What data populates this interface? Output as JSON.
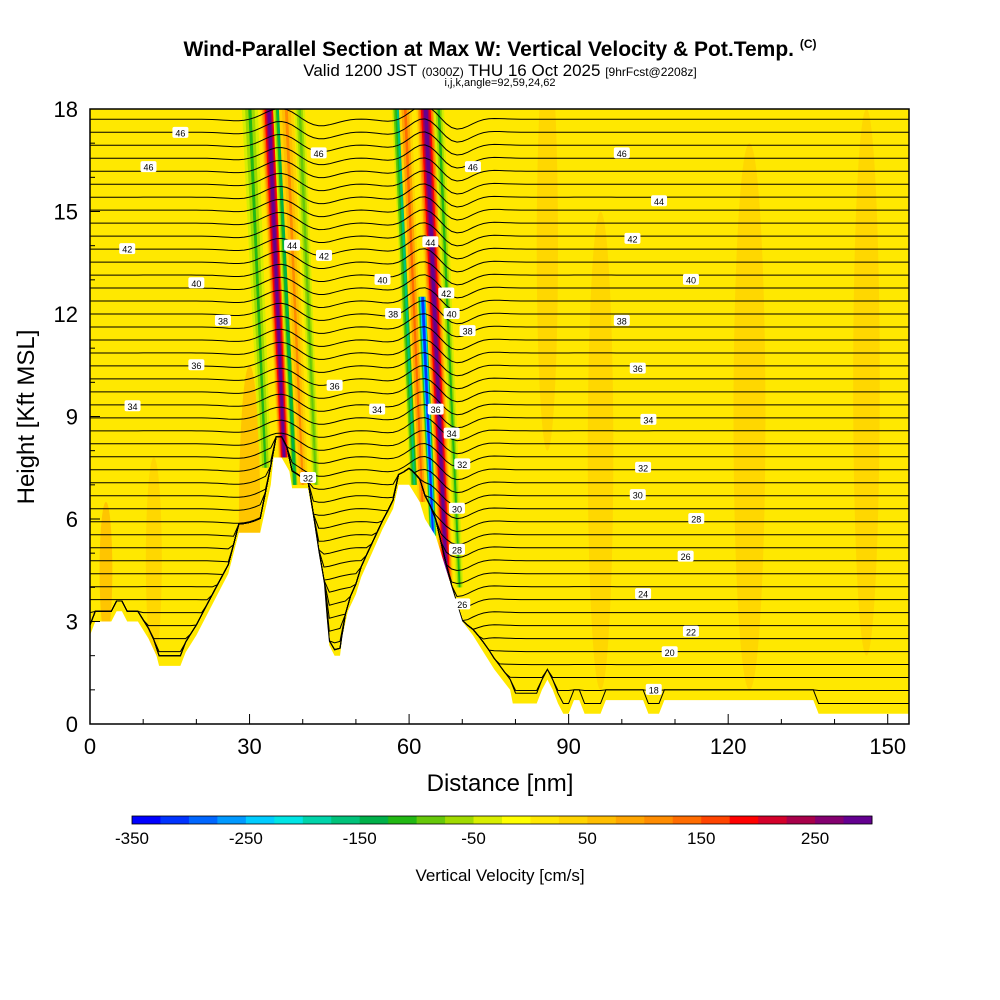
{
  "header": {
    "title": "Wind-Parallel Section at Max W: Vertical Velocity & Pot.Temp.",
    "copyright": "(C)",
    "valid_prefix": "Valid 1200 JST",
    "valid_utc": "(0300Z)",
    "valid_date": "THU 16 Oct 2025",
    "forecast": "[9hrFcst@2208z]",
    "indices": "i,j,k,angle=92,59,24,62"
  },
  "colors": {
    "terrain": "#ffffff",
    "contour_line": "#000000",
    "background_fill": "#ffdd00"
  },
  "chart_data": {
    "type": "cross-section",
    "xlabel": "Distance [nm]",
    "ylabel": "Height [Kft MSL]",
    "xlim": [
      0,
      154
    ],
    "ylim": [
      0,
      18
    ],
    "x_ticks": [
      0,
      30,
      60,
      90,
      120,
      150
    ],
    "x_tick_labels": [
      "0",
      "30",
      "60",
      "90",
      "120",
      "150"
    ],
    "y_ticks": [
      0,
      3,
      6,
      9,
      12,
      15,
      18
    ],
    "y_tick_labels": [
      "0",
      "3",
      "6",
      "9",
      "12",
      "15",
      "18"
    ],
    "terrain": [
      {
        "x": 0,
        "h": 2.6
      },
      {
        "x": 1,
        "h": 3.0
      },
      {
        "x": 4,
        "h": 3.0
      },
      {
        "x": 5,
        "h": 3.3
      },
      {
        "x": 6,
        "h": 3.3
      },
      {
        "x": 7,
        "h": 3.0
      },
      {
        "x": 9,
        "h": 3.0
      },
      {
        "x": 11,
        "h": 2.5
      },
      {
        "x": 12.5,
        "h": 2.0
      },
      {
        "x": 13,
        "h": 1.7
      },
      {
        "x": 17,
        "h": 1.7
      },
      {
        "x": 18,
        "h": 2.1
      },
      {
        "x": 20,
        "h": 2.6
      },
      {
        "x": 22,
        "h": 3.2
      },
      {
        "x": 24,
        "h": 3.8
      },
      {
        "x": 26,
        "h": 4.4
      },
      {
        "x": 27,
        "h": 5.0
      },
      {
        "x": 28,
        "h": 5.6
      },
      {
        "x": 32,
        "h": 5.6
      },
      {
        "x": 33,
        "h": 6.3
      },
      {
        "x": 34,
        "h": 7.0
      },
      {
        "x": 34.5,
        "h": 7.8
      },
      {
        "x": 36,
        "h": 7.8
      },
      {
        "x": 37.5,
        "h": 7.4
      },
      {
        "x": 38,
        "h": 6.9
      },
      {
        "x": 41,
        "h": 6.9
      },
      {
        "x": 42,
        "h": 6.0
      },
      {
        "x": 43,
        "h": 5.0
      },
      {
        "x": 44,
        "h": 4.1
      },
      {
        "x": 44.5,
        "h": 3.1
      },
      {
        "x": 45,
        "h": 2.3
      },
      {
        "x": 46,
        "h": 2.0
      },
      {
        "x": 47,
        "h": 2.0
      },
      {
        "x": 47.5,
        "h": 2.6
      },
      {
        "x": 48.5,
        "h": 3.3
      },
      {
        "x": 50,
        "h": 3.8
      },
      {
        "x": 51,
        "h": 4.3
      },
      {
        "x": 53,
        "h": 5.0
      },
      {
        "x": 55,
        "h": 5.7
      },
      {
        "x": 57,
        "h": 6.3
      },
      {
        "x": 58,
        "h": 7.0
      },
      {
        "x": 60,
        "h": 7.0
      },
      {
        "x": 62,
        "h": 6.5
      },
      {
        "x": 63,
        "h": 6.0
      },
      {
        "x": 65,
        "h": 5.5
      },
      {
        "x": 66,
        "h": 5.0
      },
      {
        "x": 67,
        "h": 4.5
      },
      {
        "x": 68,
        "h": 4.0
      },
      {
        "x": 69,
        "h": 3.5
      },
      {
        "x": 70,
        "h": 3.0
      },
      {
        "x": 72,
        "h": 2.6
      },
      {
        "x": 74,
        "h": 2.1
      },
      {
        "x": 76,
        "h": 1.6
      },
      {
        "x": 78,
        "h": 1.2
      },
      {
        "x": 79,
        "h": 1.0
      },
      {
        "x": 79.5,
        "h": 0.6
      },
      {
        "x": 84,
        "h": 0.6
      },
      {
        "x": 85,
        "h": 1.0
      },
      {
        "x": 86,
        "h": 1.3
      },
      {
        "x": 87,
        "h": 1.0
      },
      {
        "x": 88,
        "h": 0.6
      },
      {
        "x": 89,
        "h": 0.3
      },
      {
        "x": 90,
        "h": 0.3
      },
      {
        "x": 91,
        "h": 0.7
      },
      {
        "x": 92,
        "h": 0.7
      },
      {
        "x": 93,
        "h": 0.3
      },
      {
        "x": 96,
        "h": 0.3
      },
      {
        "x": 97,
        "h": 0.7
      },
      {
        "x": 104,
        "h": 0.7
      },
      {
        "x": 105,
        "h": 0.3
      },
      {
        "x": 107,
        "h": 0.3
      },
      {
        "x": 108,
        "h": 0.7
      },
      {
        "x": 136,
        "h": 0.7
      },
      {
        "x": 137,
        "h": 0.3
      },
      {
        "x": 154,
        "h": 0.3
      }
    ],
    "contours": [
      {
        "label": "46",
        "base": 17.4,
        "labels": [
          {
            "x": 17,
            "y": 17.3
          },
          {
            "x": 100,
            "y": 16.7
          }
        ]
      },
      {
        "label": "46",
        "base": 16.4,
        "labels": [
          {
            "x": 11,
            "y": 16.3
          },
          {
            "x": 43,
            "y": 16.7
          },
          {
            "x": 72,
            "y": 16.3
          }
        ]
      },
      {
        "label": "44",
        "base": 15.3,
        "labels": [
          {
            "x": 107,
            "y": 15.3
          }
        ]
      },
      {
        "label": "44",
        "base": 14.0,
        "labels": [
          {
            "x": 38,
            "y": 14.0
          },
          {
            "x": 64,
            "y": 14.1
          }
        ]
      },
      {
        "label": "42",
        "base": 13.9,
        "labels": [
          {
            "x": 7,
            "y": 13.9
          },
          {
            "x": 102,
            "y": 14.2
          },
          {
            "x": 44,
            "y": 13.7
          }
        ]
      },
      {
        "label": "42",
        "base": 12.6,
        "labels": [
          {
            "x": 67,
            "y": 12.6
          }
        ]
      },
      {
        "label": "40",
        "base": 12.9,
        "labels": [
          {
            "x": 20,
            "y": 12.9
          },
          {
            "x": 55,
            "y": 13.0
          },
          {
            "x": 113,
            "y": 13.0
          }
        ]
      },
      {
        "label": "40",
        "base": 12.0,
        "labels": [
          {
            "x": 68,
            "y": 12.0
          }
        ]
      },
      {
        "label": "38",
        "base": 11.9,
        "labels": [
          {
            "x": 25,
            "y": 11.8
          },
          {
            "x": 57,
            "y": 12.0
          },
          {
            "x": 100,
            "y": 11.8
          }
        ]
      },
      {
        "label": "38",
        "base": 11.5,
        "labels": [
          {
            "x": 71,
            "y": 11.5
          }
        ]
      },
      {
        "label": "36",
        "base": 10.8,
        "labels": [
          {
            "x": 20,
            "y": 10.5
          },
          {
            "x": 103,
            "y": 10.4
          },
          {
            "x": 46,
            "y": 9.9
          }
        ]
      },
      {
        "label": "36",
        "base": 9.2,
        "labels": [
          {
            "x": 65,
            "y": 9.2
          }
        ]
      },
      {
        "label": "34",
        "base": 9.3,
        "labels": [
          {
            "x": 8,
            "y": 9.3
          },
          {
            "x": 54,
            "y": 9.2
          },
          {
            "x": 105,
            "y": 8.9
          }
        ]
      },
      {
        "label": "34",
        "base": 8.5,
        "labels": [
          {
            "x": 68,
            "y": 8.5
          }
        ]
      },
      {
        "label": "32",
        "base": 7.6,
        "labels": [
          {
            "x": 70,
            "y": 7.6
          },
          {
            "x": 104,
            "y": 7.5
          },
          {
            "x": 41,
            "y": 7.2
          }
        ]
      },
      {
        "label": "30",
        "base": 6.8,
        "labels": [
          {
            "x": 103,
            "y": 6.7
          },
          {
            "x": 69,
            "y": 6.3
          }
        ]
      },
      {
        "label": "28",
        "base": 6.0,
        "labels": [
          {
            "x": 114,
            "y": 6.0
          },
          {
            "x": 69,
            "y": 5.1
          }
        ]
      },
      {
        "label": "26",
        "base": 5.1,
        "labels": [
          {
            "x": 112,
            "y": 4.9
          }
        ]
      },
      {
        "label": "26",
        "base": 3.5,
        "labels": [
          {
            "x": 70,
            "y": 3.5
          }
        ]
      },
      {
        "label": "24",
        "base": 3.8,
        "labels": [
          {
            "x": 104,
            "y": 3.8
          }
        ]
      },
      {
        "label": "22",
        "base": 2.7,
        "labels": [
          {
            "x": 113,
            "y": 2.7
          }
        ]
      },
      {
        "label": "20",
        "base": 2.1,
        "labels": [
          {
            "x": 109,
            "y": 2.1
          }
        ]
      },
      {
        "label": "18",
        "base": 1.0,
        "labels": [
          {
            "x": 106,
            "y": 1.0
          }
        ]
      }
    ],
    "colorbar": {
      "label": "Vertical Velocity [cm/s]",
      "min": -350,
      "max": 300,
      "step": 25,
      "tick_values": [
        -350,
        -250,
        -150,
        -50,
        50,
        150,
        250
      ],
      "tick_labels": [
        "-350",
        "-250",
        "-150",
        "-50",
        "50",
        "150",
        "250"
      ],
      "colors": [
        "#0000ff",
        "#0033ff",
        "#0066ff",
        "#0099ff",
        "#00ccff",
        "#00e5e5",
        "#00d4aa",
        "#00c27a",
        "#00b04a",
        "#22b814",
        "#66c80a",
        "#a0da00",
        "#d8ee00",
        "#ffff00",
        "#ffe800",
        "#ffd400",
        "#ffbe00",
        "#ffa500",
        "#ff8c00",
        "#ff6c00",
        "#ff4400",
        "#ff0000",
        "#d4002a",
        "#a8004a",
        "#840070",
        "#640090"
      ]
    },
    "velocity_features": [
      {
        "x": 36.5,
        "top_h": 18,
        "bottom_h": 7.8,
        "lean": 1.6,
        "kind": "updraft",
        "w": 280
      },
      {
        "x": 38.5,
        "top_h": 18,
        "bottom_h": 7.0,
        "lean": 1.0,
        "kind": "downdraft",
        "w": -150
      },
      {
        "x": 33.0,
        "top_h": 18,
        "bottom_h": 7.5,
        "lean": 1.5,
        "kind": "downdraft",
        "w": -120
      },
      {
        "x": 42.5,
        "top_h": 18,
        "bottom_h": 7.0,
        "lean": 1.0,
        "kind": "downdraft",
        "w": -100
      },
      {
        "x": 40.0,
        "top_h": 18,
        "bottom_h": 7.0,
        "lean": 1.4,
        "kind": "updraft",
        "w": 100
      },
      {
        "x": 61.0,
        "top_h": 18,
        "bottom_h": 7.0,
        "lean": 1.2,
        "kind": "downdraft",
        "w": -170
      },
      {
        "x": 62.5,
        "top_h": 18,
        "bottom_h": 6.5,
        "lean": 1.2,
        "kind": "updraft",
        "w": 140
      },
      {
        "x": 64.5,
        "top_h": 12.5,
        "bottom_h": 5.5,
        "lean": 1.0,
        "kind": "downdraft",
        "w": -320
      },
      {
        "x": 67.0,
        "top_h": 18,
        "bottom_h": 4.2,
        "lean": 1.8,
        "kind": "updraft",
        "w": 300
      },
      {
        "x": 69.5,
        "top_h": 18,
        "bottom_h": 4.0,
        "lean": 1.0,
        "kind": "downdraft",
        "w": -110
      }
    ]
  }
}
